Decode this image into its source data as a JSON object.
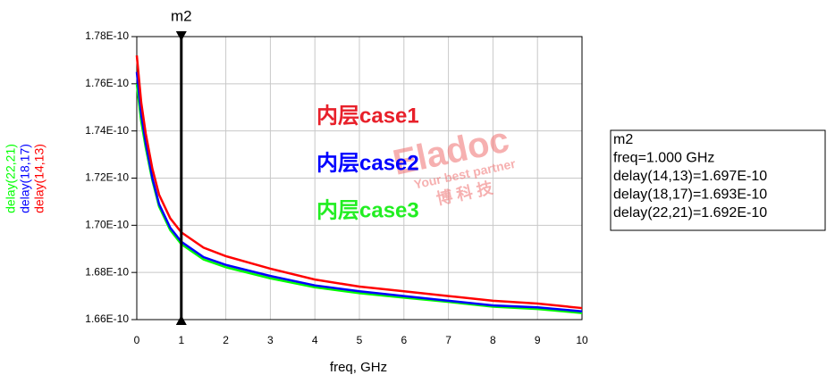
{
  "chart_data": {
    "type": "line",
    "x": [
      0,
      0.05,
      0.1,
      0.2,
      0.35,
      0.5,
      0.75,
      1,
      1.5,
      2,
      3,
      4,
      5,
      6,
      7,
      8,
      9,
      10
    ],
    "series": [
      {
        "name": "delay(14,13)",
        "color": "#ff0000",
        "values": [
          1.772e-10,
          1.762e-10,
          1.752e-10,
          1.739e-10,
          1.724e-10,
          1.713e-10,
          1.703e-10,
          1.697e-10,
          1.6905e-10,
          1.6869e-10,
          1.6816e-10,
          1.677e-10,
          1.674e-10,
          1.672e-10,
          1.67e-10,
          1.668e-10,
          1.6668e-10,
          1.6649e-10
        ]
      },
      {
        "name": "delay(18,17)",
        "color": "#0000ff",
        "values": [
          1.765e-10,
          1.756e-10,
          1.747e-10,
          1.735e-10,
          1.72e-10,
          1.709e-10,
          1.699e-10,
          1.693e-10,
          1.6865e-10,
          1.6832e-10,
          1.6785e-10,
          1.6745e-10,
          1.672e-10,
          1.67e-10,
          1.668e-10,
          1.666e-10,
          1.6652e-10,
          1.6635e-10
        ]
      },
      {
        "name": "delay(22,21)",
        "color": "#00ff00",
        "values": [
          1.76e-10,
          1.752e-10,
          1.744e-10,
          1.733e-10,
          1.719e-10,
          1.708e-10,
          1.698e-10,
          1.692e-10,
          1.6855e-10,
          1.6822e-10,
          1.6775e-10,
          1.6737e-10,
          1.6712e-10,
          1.6693e-10,
          1.6675e-10,
          1.6655e-10,
          1.6645e-10,
          1.6628e-10
        ]
      }
    ],
    "xlabel": "freq, GHz",
    "xlim": [
      0,
      10
    ],
    "xticks": [
      0,
      1,
      2,
      3,
      4,
      5,
      6,
      7,
      8,
      9,
      10
    ],
    "ylim": [
      1.66e-10,
      1.78e-10
    ],
    "yticks": [
      {
        "value": 1.66e-10,
        "label": "1.66E-10"
      },
      {
        "value": 1.68e-10,
        "label": "1.68E-10"
      },
      {
        "value": 1.7e-10,
        "label": "1.70E-10"
      },
      {
        "value": 1.72e-10,
        "label": "1.72E-10"
      },
      {
        "value": 1.74e-10,
        "label": "1.74E-10"
      },
      {
        "value": 1.76e-10,
        "label": "1.76E-10"
      },
      {
        "value": 1.78e-10,
        "label": "1.78E-10"
      }
    ],
    "grid": true,
    "marker": {
      "name": "m2",
      "x": 1,
      "readout": [
        "m2",
        "freq=1.000 GHz",
        "delay(14,13)=1.697E-10",
        "delay(18,17)=1.693E-10",
        "delay(22,21)=1.692E-10"
      ]
    },
    "annotations": [
      {
        "text": "内层case1",
        "color": "#e8202a"
      },
      {
        "text": "内层case2",
        "color": "#0000ff"
      },
      {
        "text": "内层case3",
        "color": "#22ee22"
      }
    ],
    "watermark": [
      "Eladoc",
      "Your best partner",
      "博  科  技"
    ]
  }
}
